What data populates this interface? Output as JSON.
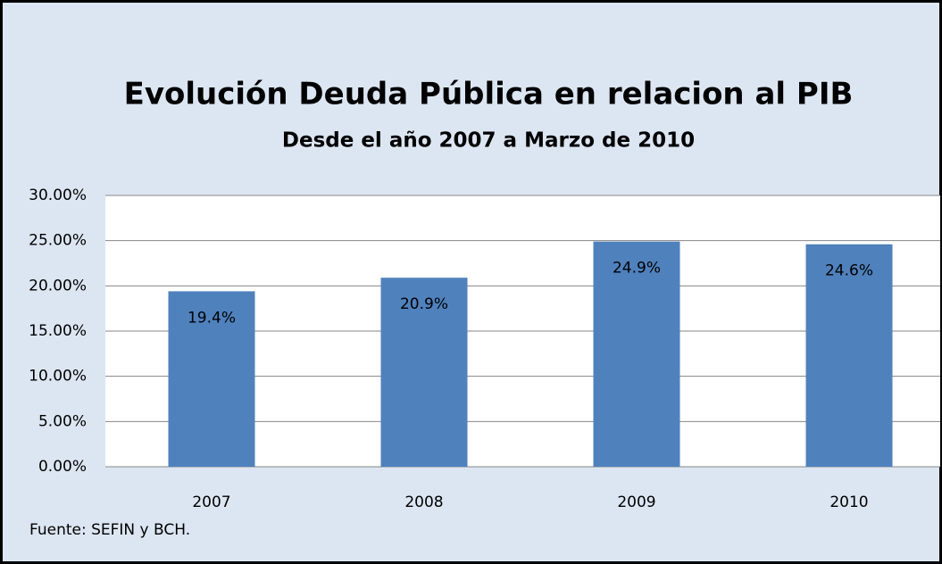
{
  "chart_data": {
    "type": "bar",
    "title": "Evolución Deuda Pública en relacion al PIB",
    "subtitle": "Desde el año 2007 a Marzo de 2010",
    "categories": [
      "2007",
      "2008",
      "2009",
      "2010"
    ],
    "values": [
      19.4,
      20.9,
      24.9,
      24.6
    ],
    "value_labels": [
      "19.4%",
      "20.9%",
      "24.9%",
      "24.6%"
    ],
    "color": "#4f81bd",
    "ylim": [
      0,
      30
    ],
    "yticks": [
      {
        "value": 0,
        "label": "0.00%"
      },
      {
        "value": 5,
        "label": "5.00%"
      },
      {
        "value": 10,
        "label": "10.00%"
      },
      {
        "value": 15,
        "label": "15.00%"
      },
      {
        "value": 20,
        "label": "20.00%"
      },
      {
        "value": 25,
        "label": "25.00%"
      },
      {
        "value": 30,
        "label": "30.00%"
      }
    ],
    "grid": true,
    "source": "Fuente: SEFIN y BCH."
  }
}
